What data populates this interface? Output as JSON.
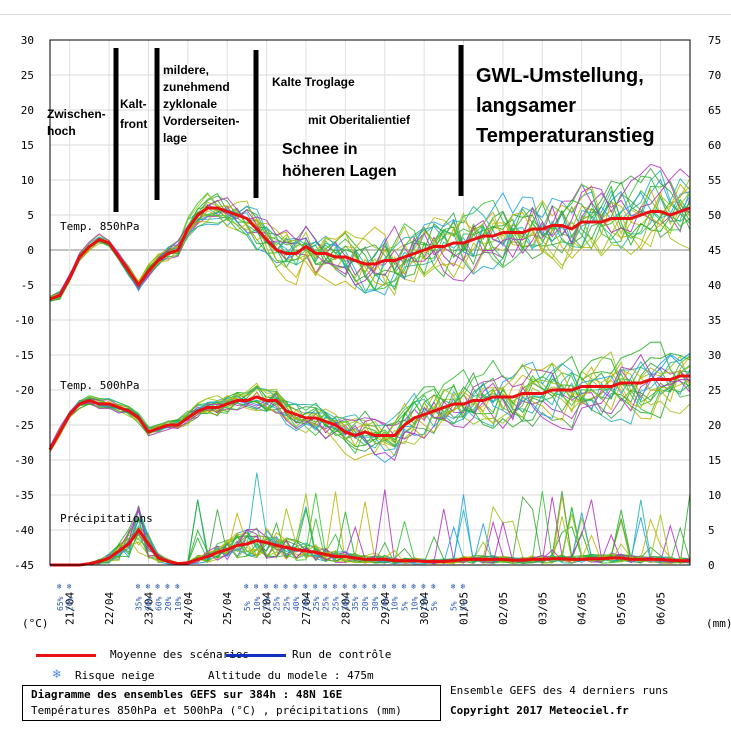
{
  "chart_data": {
    "type": "line",
    "title": "Diagramme des ensembles GEFS sur 384h : 48N 16E",
    "subtitle": "Températures 850hPa et 500hPa (°C) , précipitations (mm)",
    "x_ticks": [
      "21/04",
      "22/04",
      "23/04",
      "24/04",
      "25/04",
      "26/04",
      "27/04",
      "28/04",
      "29/04",
      "30/04",
      "01/05",
      "02/05",
      "03/05",
      "04/05",
      "05/05",
      "06/05"
    ],
    "x_start": "20/04 12h",
    "x_step_hours": 6,
    "yleft_label": "(°C)",
    "yright_label": "(mm)",
    "yleft_range": [
      -45,
      30
    ],
    "yleft_ticks": [
      30,
      25,
      20,
      15,
      10,
      5,
      0,
      -5,
      -10,
      -15,
      -20,
      -25,
      -30,
      -35,
      -40,
      -45
    ],
    "yright_range": [
      0,
      75
    ],
    "yright_ticks": [
      75,
      70,
      65,
      60,
      55,
      50,
      45,
      40,
      35,
      30,
      25,
      20,
      15,
      10,
      5,
      0
    ],
    "panel_labels": {
      "t850": "Temp. 850hPa",
      "t500": "Temp. 500hPa",
      "precip": "Précipitations"
    },
    "series": [
      {
        "name": "Moyenne des scénarios",
        "color": "#e81010",
        "t850": [
          -7,
          -6.5,
          -4,
          -1,
          0.5,
          1.5,
          1,
          -1,
          -3,
          -5,
          -3,
          -1.5,
          -0.5,
          0,
          3,
          5,
          6,
          6,
          5.5,
          5,
          4.5,
          3,
          1.5,
          0,
          -0.5,
          -0.5,
          0.5,
          -0.5,
          -0.5,
          -1,
          -1,
          -1.5,
          -2,
          -2,
          -1.5,
          -1.5,
          -1,
          -0.5,
          0,
          0.5,
          0.5,
          1,
          1,
          1.5,
          2,
          2,
          2.5,
          2.5,
          2.5,
          3,
          3,
          3.5,
          3.5,
          3,
          4,
          4,
          4,
          4.5,
          4.5,
          4.5,
          5,
          5.5,
          5.5,
          5,
          5.5,
          6
        ],
        "t500": [
          -28.5,
          -26,
          -23.5,
          -22,
          -21.5,
          -22,
          -22,
          -22.5,
          -23,
          -24,
          -26,
          -25.5,
          -25,
          -25,
          -24,
          -23,
          -22.5,
          -22.5,
          -22,
          -21.5,
          -21.5,
          -21,
          -21.5,
          -21.5,
          -23,
          -23.5,
          -24,
          -24,
          -24.5,
          -25,
          -26,
          -26.5,
          -26,
          -26.5,
          -26.5,
          -26.5,
          -25,
          -24,
          -23.5,
          -23,
          -22.5,
          -22,
          -22,
          -21.5,
          -21.5,
          -21,
          -21,
          -21,
          -20.5,
          -20.5,
          -20.5,
          -20,
          -20,
          -20,
          -19.5,
          -19.5,
          -19.5,
          -19.5,
          -19,
          -19,
          -19,
          -18.5,
          -18.5,
          -18.5,
          -18,
          -18
        ],
        "precip": [
          0,
          0,
          0,
          0,
          0.2,
          0.5,
          1,
          2,
          3,
          5,
          3,
          1,
          0.5,
          0.2,
          0.3,
          0.8,
          1.2,
          1.8,
          2.2,
          2.8,
          3,
          3.5,
          3.2,
          2.8,
          2.5,
          2.2,
          2,
          1.8,
          1.5,
          1.2,
          1.2,
          1,
          0.8,
          0.8,
          0.8,
          0.6,
          0.6,
          0.6,
          0.5,
          0.5,
          0.5,
          0.6,
          0.8,
          0.8,
          0.8,
          0.8,
          0.8,
          0.7,
          0.7,
          0.8,
          0.8,
          0.9,
          0.9,
          0.8,
          0.8,
          0.9,
          0.9,
          1,
          1,
          0.8,
          0.8,
          0.8,
          0.8,
          0.7,
          0.6,
          0.6
        ]
      },
      {
        "name": "Run de contrôle",
        "color": "#1030c0"
      }
    ],
    "risk_label": "Risque neige",
    "risk_values": [
      "65%",
      "20%",
      "",
      "",
      "",
      "",
      "",
      "",
      "35%",
      "90%",
      "60%",
      "20%",
      "10%",
      "",
      "",
      "",
      "",
      "",
      "",
      "5%",
      "10%",
      "25%",
      "25%",
      "25%",
      "40%",
      "20%",
      "25%",
      "25%",
      "25%",
      "30%",
      "35%",
      "20%",
      "30%",
      "20%",
      "10%",
      "5%",
      "10%",
      "15%",
      "5%",
      "",
      "5%",
      "5%"
    ],
    "annotations": [
      {
        "lines": [
          "Zwischen-",
          "hoch"
        ]
      },
      {
        "lines": [
          "Kalt-",
          "front"
        ]
      },
      {
        "lines": [
          "mildere,",
          "zunehmend",
          "zyklonale",
          "Vorderseiten-",
          "lage"
        ]
      },
      {
        "lines": [
          "Kalte Troglage"
        ]
      },
      {
        "lines": [
          "mit Oberitalientief"
        ]
      },
      {
        "lines": [
          "Schnee in",
          "höheren Lagen"
        ]
      },
      {
        "lines": [
          "GWL-Umstellung,",
          "langsamer",
          "Temperaturanstieg"
        ]
      }
    ],
    "legend_extra": "Altitude du modele : 475m",
    "footer_right_1": "Ensemble GEFS des 4 derniers runs",
    "footer_right_2": "Copyright 2017 Meteociel.fr"
  }
}
